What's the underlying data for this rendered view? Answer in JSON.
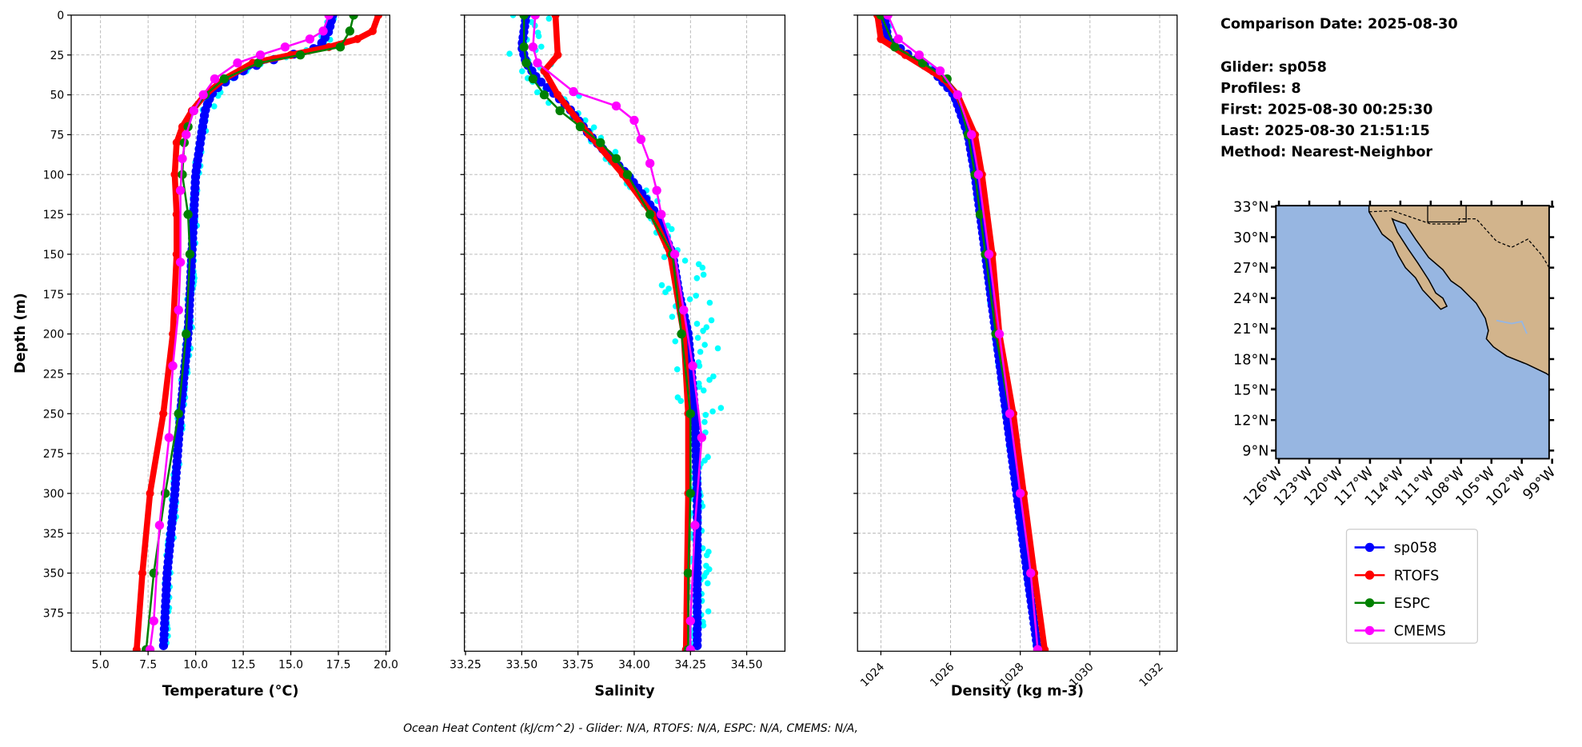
{
  "info": {
    "comparison_date": "Comparison Date: 2025-08-30",
    "glider": "Glider: sp058",
    "profiles": "Profiles: 8",
    "first": "First: 2025-08-30 00:25:30",
    "last": "Last: 2025-08-30 21:51:15",
    "method": "Method: Nearest-Neighbor"
  },
  "caption": "Ocean Heat Content (kJ/cm^2) - Glider: N/A,  RTOFS: N/A,  ESPC: N/A,  CMEMS: N/A,",
  "colors": {
    "sp058": "#0000ff",
    "RTOFS": "#ff0000",
    "ESPC": "#008000",
    "CMEMS": "#ff00ff",
    "glider_raw": "#00ffff",
    "ocean": "#97b6e1",
    "land": "#d2b48c"
  },
  "legend": [
    "sp058",
    "RTOFS",
    "ESPC",
    "CMEMS"
  ],
  "map": {
    "lat_ticks": [
      "33°N",
      "30°N",
      "27°N",
      "24°N",
      "21°N",
      "18°N",
      "15°N",
      "12°N",
      "9°N"
    ],
    "lon_ticks": [
      "126°W",
      "123°W",
      "120°W",
      "117°W",
      "114°W",
      "111°W",
      "108°W",
      "105°W",
      "102°W",
      "99°W"
    ]
  },
  "chart_data": [
    {
      "type": "line",
      "xlabel": "Temperature (°C)",
      "ylabel": "Depth (m)",
      "xlim": [
        3.46,
        20.2
      ],
      "ylim": [
        399,
        0
      ],
      "xticks": [
        "5.0",
        "7.5",
        "10.0",
        "12.5",
        "15.0",
        "17.5",
        "20.0"
      ],
      "xtick_values": [
        5,
        7.5,
        10,
        12.5,
        15,
        17.5,
        20
      ],
      "yticks": [
        "0",
        "25",
        "50",
        "75",
        "100",
        "125",
        "150",
        "175",
        "200",
        "225",
        "250",
        "275",
        "300",
        "325",
        "350",
        "375"
      ],
      "grid": true,
      "series": [
        {
          "name": "sp058",
          "depth": [
            0,
            10,
            20,
            25,
            30,
            35,
            40,
            45,
            50,
            60,
            75,
            100,
            125,
            150,
            200,
            250,
            300,
            350,
            398
          ],
          "values": [
            17.2,
            17.0,
            16.5,
            15.0,
            13.5,
            12.5,
            11.8,
            11.2,
            10.8,
            10.5,
            10.3,
            10.0,
            9.9,
            9.8,
            9.6,
            9.2,
            8.9,
            8.5,
            8.3
          ]
        },
        {
          "name": "RTOFS",
          "depth": [
            0,
            10,
            15,
            20,
            25,
            30,
            40,
            50,
            60,
            70,
            80,
            100,
            125,
            150,
            200,
            250,
            300,
            350,
            398
          ],
          "values": [
            19.6,
            19.3,
            18.5,
            17.0,
            15.0,
            13.0,
            11.5,
            10.5,
            9.8,
            9.3,
            9.0,
            8.9,
            9.0,
            9.0,
            8.8,
            8.3,
            7.6,
            7.2,
            6.9
          ]
        },
        {
          "name": "ESPC",
          "depth": [
            0,
            10,
            20,
            25,
            30,
            40,
            50,
            60,
            70,
            80,
            100,
            125,
            150,
            200,
            250,
            300,
            350,
            398
          ],
          "values": [
            18.3,
            18.1,
            17.6,
            15.5,
            13.3,
            11.5,
            10.5,
            9.9,
            9.6,
            9.4,
            9.3,
            9.6,
            9.7,
            9.5,
            9.1,
            8.4,
            7.8,
            7.4
          ]
        },
        {
          "name": "CMEMS",
          "depth": [
            0,
            10,
            15,
            20,
            25,
            30,
            40,
            50,
            60,
            75,
            90,
            110,
            155,
            185,
            220,
            265,
            320,
            380,
            398
          ],
          "values": [
            17.0,
            16.7,
            16.0,
            14.7,
            13.4,
            12.2,
            11.0,
            10.4,
            9.9,
            9.5,
            9.3,
            9.2,
            9.2,
            9.1,
            8.8,
            8.6,
            8.1,
            7.8,
            7.6
          ]
        }
      ]
    },
    {
      "type": "line",
      "xlabel": "Salinity",
      "ylabel": "",
      "xlim": [
        33.245,
        34.67
      ],
      "ylim": [
        399,
        0
      ],
      "xticks": [
        "33.25",
        "33.50",
        "33.75",
        "34.00",
        "34.25",
        "34.50"
      ],
      "xtick_values": [
        33.25,
        33.5,
        33.75,
        34.0,
        34.25,
        34.5
      ],
      "grid": true,
      "series": [
        {
          "name": "sp058",
          "depth": [
            0,
            20,
            30,
            40,
            50,
            60,
            75,
            90,
            100,
            115,
            125,
            150,
            175,
            200,
            250,
            300,
            398
          ],
          "values": [
            33.52,
            33.5,
            33.52,
            33.57,
            33.65,
            33.72,
            33.8,
            33.9,
            33.97,
            34.05,
            34.1,
            34.17,
            34.2,
            34.24,
            34.27,
            34.28,
            34.28
          ]
        },
        {
          "name": "RTOFS",
          "depth": [
            0,
            25,
            35,
            50,
            75,
            100,
            125,
            150,
            200,
            250,
            300,
            398
          ],
          "values": [
            33.65,
            33.66,
            33.6,
            33.66,
            33.8,
            33.95,
            34.08,
            34.16,
            34.22,
            34.24,
            34.24,
            34.23
          ]
        },
        {
          "name": "ESPC",
          "depth": [
            0,
            20,
            30,
            40,
            50,
            60,
            70,
            80,
            90,
            100,
            125,
            150,
            200,
            250,
            300,
            350,
            398
          ],
          "values": [
            33.51,
            33.51,
            33.52,
            33.55,
            33.6,
            33.67,
            33.76,
            33.85,
            33.92,
            33.97,
            34.07,
            34.17,
            34.21,
            34.25,
            34.25,
            34.24,
            34.24
          ]
        },
        {
          "name": "CMEMS",
          "depth": [
            0,
            20,
            30,
            48,
            57,
            66,
            78,
            93,
            110,
            125,
            150,
            185,
            220,
            265,
            320,
            380,
            398
          ],
          "values": [
            33.56,
            33.55,
            33.57,
            33.73,
            33.92,
            34.0,
            34.03,
            34.07,
            34.1,
            34.12,
            34.18,
            34.22,
            34.26,
            34.3,
            34.27,
            34.25,
            34.25
          ]
        }
      ]
    },
    {
      "type": "line",
      "xlabel": "Density (kg m-3)",
      "ylabel": "",
      "xlim": [
        1023.33,
        1032.5
      ],
      "ylim": [
        399,
        0
      ],
      "xticks": [
        "1024",
        "1026",
        "1028",
        "1030",
        "1032"
      ],
      "xtick_values": [
        1024,
        1026,
        1028,
        1030,
        1032
      ],
      "grid": true,
      "series": [
        {
          "name": "sp058",
          "depth": [
            0,
            15,
            25,
            35,
            50,
            75,
            100,
            125,
            150,
            200,
            250,
            300,
            350,
            398
          ],
          "values": [
            1024.1,
            1024.2,
            1024.8,
            1025.5,
            1026.1,
            1026.5,
            1026.7,
            1026.85,
            1027.0,
            1027.3,
            1027.6,
            1027.9,
            1028.2,
            1028.5
          ]
        },
        {
          "name": "RTOFS",
          "depth": [
            0,
            15,
            25,
            40,
            50,
            75,
            100,
            150,
            200,
            250,
            300,
            350,
            398
          ],
          "values": [
            1023.9,
            1024.0,
            1024.7,
            1025.8,
            1026.2,
            1026.7,
            1026.9,
            1027.2,
            1027.4,
            1027.8,
            1028.1,
            1028.4,
            1028.7
          ]
        },
        {
          "name": "ESPC",
          "depth": [
            0,
            20,
            30,
            40,
            50,
            75,
            100,
            125,
            150,
            200,
            250,
            300,
            350,
            398
          ],
          "values": [
            1024.0,
            1024.4,
            1025.2,
            1025.9,
            1026.2,
            1026.5,
            1026.7,
            1026.85,
            1027.0,
            1027.3,
            1027.7,
            1028.0,
            1028.3,
            1028.5
          ]
        },
        {
          "name": "CMEMS",
          "depth": [
            0,
            15,
            25,
            35,
            50,
            75,
            100,
            150,
            200,
            250,
            300,
            350,
            398
          ],
          "values": [
            1024.2,
            1024.5,
            1025.1,
            1025.7,
            1026.2,
            1026.6,
            1026.8,
            1027.1,
            1027.4,
            1027.7,
            1028.0,
            1028.3,
            1028.5
          ]
        }
      ]
    }
  ]
}
